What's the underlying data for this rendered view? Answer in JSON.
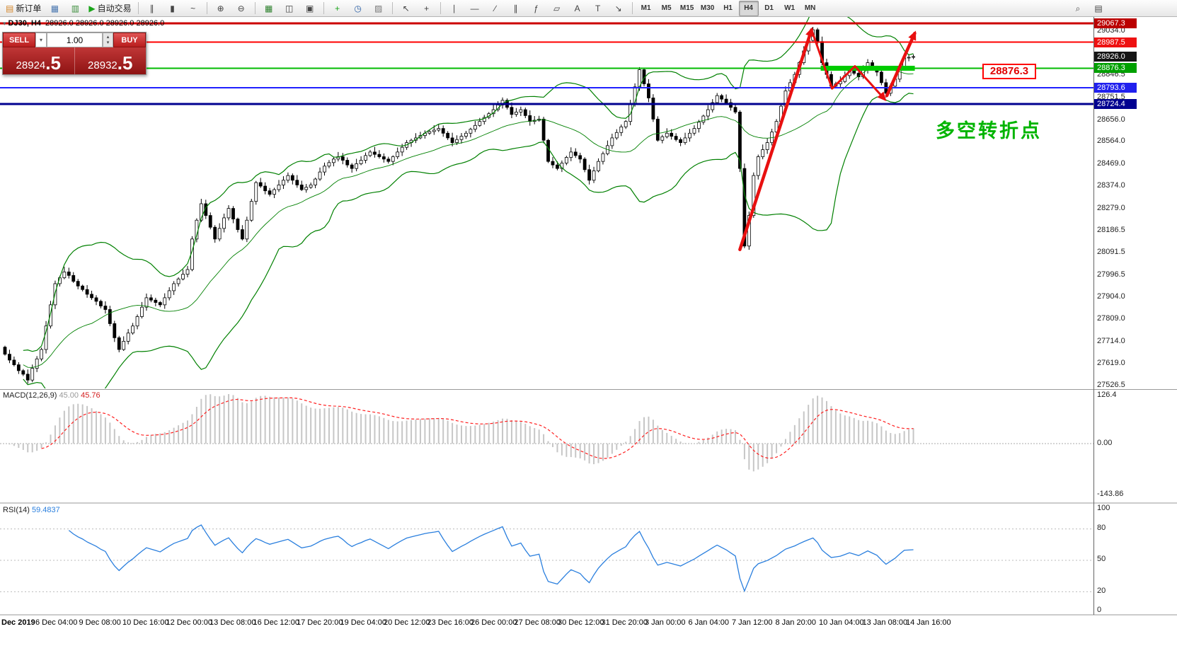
{
  "toolbar": {
    "groups": [
      [
        {
          "name": "new-order-button",
          "glyph": "▤",
          "glyph_color": "#d4862a",
          "label": "新订单"
        },
        {
          "name": "chart-profile-button",
          "glyph": "▦",
          "glyph_color": "#4a77b0"
        },
        {
          "name": "market-watch-button",
          "glyph": "▥",
          "glyph_color": "#3f8f3f"
        },
        {
          "name": "autotrade-button",
          "glyph": "▶",
          "glyph_color": "#1aa51a",
          "label": "自动交易"
        }
      ],
      [
        {
          "name": "bar-chart-button",
          "glyph": "∥"
        },
        {
          "name": "candlestick-chart-button",
          "glyph": "▮"
        },
        {
          "name": "line-chart-button",
          "glyph": "~"
        }
      ],
      [
        {
          "name": "zoom-in-button",
          "glyph": "⊕"
        },
        {
          "name": "zoom-out-button",
          "glyph": "⊖"
        }
      ],
      [
        {
          "name": "tile-windows-button",
          "glyph": "▦",
          "glyph_color": "#2a7f2a"
        },
        {
          "name": "cascade-windows-button",
          "glyph": "◫"
        },
        {
          "name": "arrange-windows-button",
          "glyph": "▣"
        }
      ],
      [
        {
          "name": "add-indicator-button",
          "glyph": "+",
          "glyph_color": "#1aa51a"
        },
        {
          "name": "periods-button",
          "glyph": "◷",
          "glyph_color": "#2a5fa5"
        },
        {
          "name": "snapshot-button",
          "glyph": "▨",
          "glyph_color": "#777777"
        }
      ],
      [
        {
          "name": "cursor-button",
          "glyph": "↖"
        },
        {
          "name": "crosshair-button",
          "glyph": "+"
        }
      ],
      [
        {
          "name": "vertical-line-button",
          "glyph": "∣"
        },
        {
          "name": "horizontal-line-button",
          "glyph": "―"
        },
        {
          "name": "trendline-button",
          "glyph": "∕"
        },
        {
          "name": "channel-button",
          "glyph": "∥"
        },
        {
          "name": "fibonacci-button",
          "glyph": "ƒ"
        },
        {
          "name": "shapes-button",
          "glyph": "▱"
        },
        {
          "name": "text-button",
          "glyph": "A"
        },
        {
          "name": "label-button",
          "glyph": "T"
        },
        {
          "name": "arrow-objects-button",
          "glyph": "↘"
        }
      ]
    ],
    "timeframes": [
      {
        "label": "M1"
      },
      {
        "label": "M5"
      },
      {
        "label": "M15"
      },
      {
        "label": "M30"
      },
      {
        "label": "H1"
      },
      {
        "label": "H4",
        "active": true
      },
      {
        "label": "D1"
      },
      {
        "label": "W1"
      },
      {
        "label": "MN"
      }
    ],
    "right_buttons": [
      {
        "name": "search-button",
        "glyph": "⌕"
      },
      {
        "name": "data-window-button",
        "glyph": "▤"
      }
    ]
  },
  "chart_header": {
    "symbol_period": "DJ30, H4",
    "ohlc": "28926.0 28926.0 28926.0 28926.0"
  },
  "one_click": {
    "sell_label": "SELL",
    "buy_label": "BUY",
    "volume": "1.00",
    "sell_price_small": "28924",
    "sell_price_big": ".5",
    "buy_price_small": "28932",
    "buy_price_big": ".5"
  },
  "annotations": {
    "turning_point": "多空转折点",
    "price_tag_text": "28876.3"
  },
  "price_axis": {
    "ticks": [
      "29034.0",
      "28846.5",
      "28751.5",
      "28656.0",
      "28564.0",
      "28469.0",
      "28374.0",
      "28279.0",
      "28186.5",
      "28091.5",
      "27996.5",
      "27904.0",
      "27809.0",
      "27714.0",
      "27619.0",
      "27526.5"
    ],
    "tags": [
      {
        "text": "29067.3",
        "bg": "#bb0000"
      },
      {
        "text": "28987.5",
        "bg": "#ee1111"
      },
      {
        "text": "28926.0",
        "bg": "#151515"
      },
      {
        "text": "28876.3",
        "bg": "#00a000"
      },
      {
        "text": "28793.6",
        "bg": "#2020ee"
      },
      {
        "text": "28724.4",
        "bg": "#000090"
      }
    ]
  },
  "indicators": {
    "macd": {
      "label": "MACD(12,26,9)",
      "value_main": "45.00",
      "value_signal": "45.76",
      "axis": [
        "126.4",
        "0.00",
        "-143.86"
      ]
    },
    "rsi": {
      "label": "RSI(14)",
      "value": "59.4837",
      "axis": [
        "100",
        "80",
        "50",
        "20",
        "0"
      ],
      "levels": [
        80,
        50,
        20
      ]
    }
  },
  "time_axis": {
    "labels": [
      "Dec 2019",
      "6 Dec 04:00",
      "9 Dec 08:00",
      "10 Dec 16:00",
      "12 Dec 00:00",
      "13 Dec 08:00",
      "16 Dec 12:00",
      "17 Dec 20:00",
      "19 Dec 04:00",
      "20 Dec 12:00",
      "23 Dec 16:00",
      "26 Dec 00:00",
      "27 Dec 08:00",
      "30 Dec 12:00",
      "31 Dec 20:00",
      "3 Jan 00:00",
      "6 Jan 04:00",
      "7 Jan 12:00",
      "8 Jan 20:00",
      "10 Jan 04:00",
      "13 Jan 08:00",
      "14 Jan 16:00"
    ]
  },
  "chart_data": {
    "type": "candlestick",
    "symbol": "DJ30",
    "timeframe": "H4",
    "y_range": [
      27526.5,
      29067.3
    ],
    "current_ohlc": [
      28926.0,
      28926.0,
      28926.0,
      28926.0
    ],
    "closes": [
      27660,
      27635,
      27615,
      27590,
      27575,
      27550,
      27600,
      27640,
      27680,
      27780,
      27870,
      27960,
      27985,
      28010,
      27995,
      27970,
      27950,
      27935,
      27915,
      27900,
      27885,
      27865,
      27850,
      27790,
      27730,
      27680,
      27715,
      27750,
      27780,
      27820,
      27860,
      27900,
      27890,
      27880,
      27870,
      27900,
      27930,
      27960,
      27980,
      28000,
      28020,
      28150,
      28230,
      28300,
      28250,
      28200,
      28150,
      28195,
      28240,
      28280,
      28235,
      28190,
      28150,
      28230,
      28310,
      28390,
      28375,
      28355,
      28340,
      28360,
      28380,
      28400,
      28420,
      28400,
      28380,
      28360,
      28370,
      28380,
      28405,
      28435,
      28460,
      28475,
      28490,
      28500,
      28485,
      28465,
      28450,
      28470,
      28485,
      28505,
      28520,
      28510,
      28500,
      28490,
      28480,
      28500,
      28520,
      28540,
      28560,
      28570,
      28580,
      28590,
      28600,
      28607,
      28613,
      28620,
      28600,
      28580,
      28560,
      28573,
      28587,
      28600,
      28617,
      28633,
      28650,
      28667,
      28683,
      28700,
      28720,
      28740,
      28710,
      28680,
      28690,
      28700,
      28675,
      28650,
      28655,
      28660,
      28570,
      28480,
      28465,
      28450,
      28473,
      28497,
      28520,
      28505,
      28490,
      28445,
      28400,
      28440,
      28480,
      28513,
      28547,
      28580,
      28603,
      28627,
      28650,
      28723,
      28797,
      28870,
      28810,
      28750,
      28660,
      28570,
      28585,
      28600,
      28587,
      28573,
      28560,
      28580,
      28600,
      28620,
      28647,
      28673,
      28700,
      28730,
      28760,
      28745,
      28730,
      28710,
      28690,
      28450,
      28120,
      28250,
      28420,
      28500,
      28530,
      28560,
      28605,
      28650,
      28715,
      28780,
      28815,
      28850,
      28900,
      28950,
      28995,
      29040,
      28990,
      28900,
      28850,
      28800,
      28810,
      28820,
      28845,
      28870,
      28855,
      28840,
      28870,
      28900,
      28880,
      28860,
      28815,
      28770,
      28800,
      28830,
      28875,
      28920,
      28923,
      28926
    ],
    "bollinger": {
      "period": 20,
      "deviation": 2,
      "color": "#008000"
    },
    "hlines": [
      {
        "price": 29067.3,
        "color": "#cc0000",
        "width": 3
      },
      {
        "price": 28987.5,
        "color": "#ff0000",
        "width": 2
      },
      {
        "price": 28876.3,
        "color": "#00bb00",
        "width": 2
      },
      {
        "price": 28793.6,
        "color": "#2020ff",
        "width": 2
      },
      {
        "price": 28724.4,
        "color": "#000090",
        "width": 3
      }
    ],
    "green_zone": {
      "price": 28876.3,
      "from_idx": 179,
      "to_idx": 199,
      "color": "#00cc00"
    },
    "arrow_color": "#e81010",
    "trend_arrows": [
      {
        "width": 4.5,
        "points": [
          [
            161.3,
            28105
          ],
          [
            177,
            29040
          ]
        ]
      },
      {
        "width": 3,
        "points": [
          [
            177,
            29040
          ],
          [
            181.5,
            28790
          ],
          [
            186.5,
            28885
          ],
          [
            193,
            28745
          ]
        ]
      },
      {
        "width": 4.5,
        "points": [
          [
            193.5,
            28760
          ],
          [
            199.6,
            29025
          ]
        ]
      }
    ]
  }
}
